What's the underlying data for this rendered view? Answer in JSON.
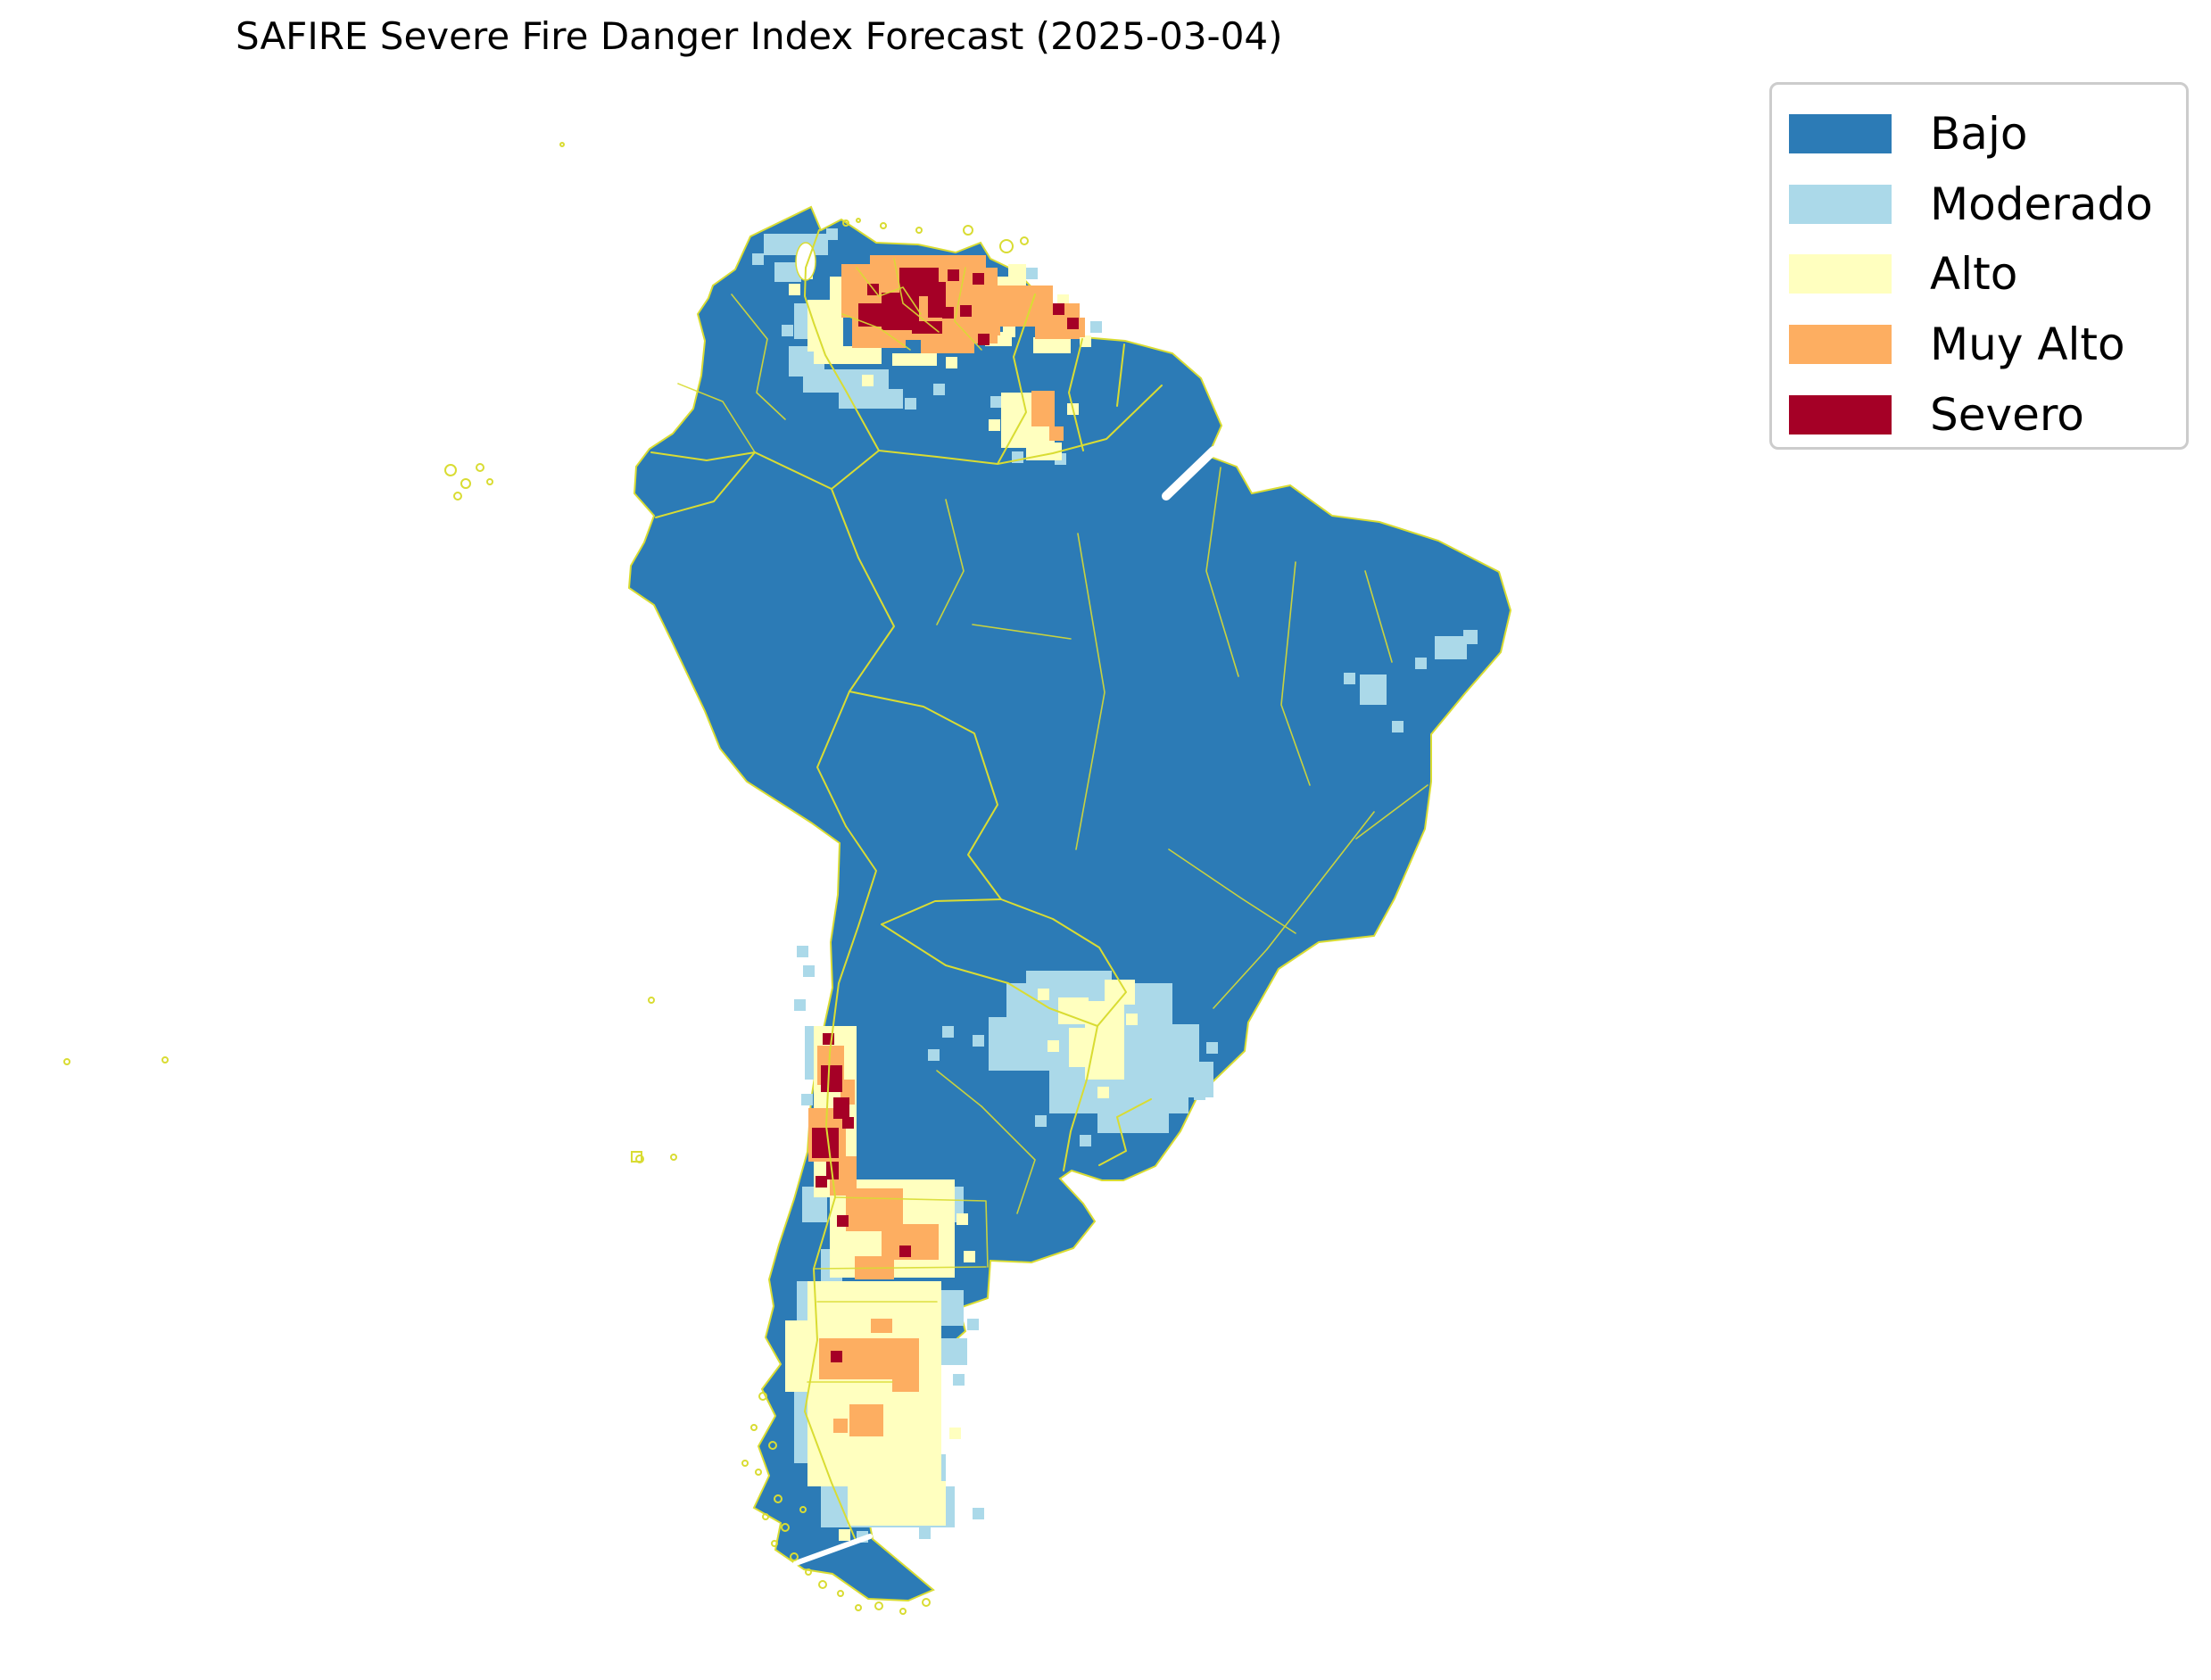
{
  "title": "SAFIRE Severe Fire Danger Index Forecast (2025-03-04)",
  "legend": {
    "items": [
      {
        "label": "Bajo",
        "color": "#2c7bb6"
      },
      {
        "label": "Moderado",
        "color": "#abd9e9"
      },
      {
        "label": "Alto",
        "color": "#ffffbf"
      },
      {
        "label": "Muy Alto",
        "color": "#fdae61"
      },
      {
        "label": "Severo",
        "color": "#a50026"
      }
    ]
  },
  "map": {
    "ocean_color": "#ffffff",
    "land_level": "Bajo",
    "admin_line_color": "#d9dc33",
    "cell_size": 13,
    "hotspots": [
      {
        "name": "venezuela-llanos",
        "level": "Moderado",
        "rects": [
          [
            884,
            388,
            40,
            34
          ],
          [
            900,
            414,
            96,
            26
          ],
          [
            940,
            436,
            72,
            22
          ],
          [
            868,
            294,
            30,
            22
          ],
          [
            856,
            262,
            72,
            24
          ],
          [
            890,
            340,
            16,
            40
          ]
        ],
        "cells": [
          [
            843,
            284
          ],
          [
            926,
            256
          ],
          [
            1014,
            446
          ],
          [
            1046,
            430
          ],
          [
            876,
            364
          ],
          [
            1222,
            360
          ],
          [
            1150,
            300
          ]
        ]
      },
      {
        "name": "venezuela-llanos",
        "level": "Alto",
        "rects": [
          [
            905,
            336,
            40,
            58
          ],
          [
            912,
            388,
            76,
            20
          ],
          [
            930,
            310,
            16,
            28
          ],
          [
            1000,
            396,
            50,
            14
          ],
          [
            1118,
            310,
            18,
            46
          ],
          [
            1104,
            372,
            30,
            16
          ],
          [
            1124,
            352,
            14,
            26
          ],
          [
            1158,
            378,
            42,
            18
          ],
          [
            1130,
            296,
            20,
            30
          ]
        ],
        "cells": [
          [
            884,
            318
          ],
          [
            898,
            300
          ],
          [
            966,
            420
          ],
          [
            1060,
            400
          ],
          [
            1134,
            296
          ],
          [
            1146,
            330
          ],
          [
            1185,
            330
          ],
          [
            1210,
            376
          ]
        ]
      },
      {
        "name": "venezuela-llanos",
        "level": "Muy Alto",
        "rects": [
          [
            943,
            296,
            90,
            60
          ],
          [
            975,
            286,
            130,
            95
          ],
          [
            1060,
            300,
            58,
            85
          ],
          [
            955,
            350,
            60,
            40
          ],
          [
            1095,
            320,
            26,
            56
          ],
          [
            1032,
            378,
            60,
            18
          ],
          [
            1120,
            320,
            60,
            46
          ],
          [
            1160,
            340,
            50,
            40
          ],
          [
            1198,
            356,
            18,
            22
          ]
        ],
        "cells": []
      },
      {
        "name": "venezuela-llanos",
        "level": "Severo",
        "rects": [
          [
            1008,
            300,
            44,
            32
          ],
          [
            988,
            328,
            42,
            42
          ],
          [
            962,
            340,
            30,
            26
          ],
          [
            1040,
            316,
            20,
            40
          ],
          [
            1022,
            360,
            34,
            14
          ]
        ],
        "cells": [
          [
            1056,
            344
          ],
          [
            1076,
            342
          ],
          [
            1090,
            306
          ],
          [
            1096,
            374
          ],
          [
            1062,
            302
          ],
          [
            972,
            318
          ],
          [
            1180,
            340
          ],
          [
            1196,
            356
          ]
        ]
      },
      {
        "name": "guyana-roraima",
        "level": "Moderado",
        "rects": [],
        "cells": [
          [
            1134,
            506
          ],
          [
            1182,
            508
          ],
          [
            1110,
            444
          ]
        ]
      },
      {
        "name": "guyana-roraima",
        "level": "Alto",
        "rects": [
          [
            1122,
            440,
            60,
            62
          ],
          [
            1150,
            496,
            40,
            20
          ]
        ],
        "cells": [
          [
            1108,
            470
          ],
          [
            1196,
            452
          ]
        ]
      },
      {
        "name": "guyana-roraima",
        "level": "Muy Alto",
        "rects": [
          [
            1156,
            438,
            26,
            40
          ],
          [
            1176,
            478,
            16,
            16
          ]
        ],
        "cells": []
      },
      {
        "name": "ne-brazil",
        "level": "Moderado",
        "rects": [
          [
            1608,
            713,
            36,
            26
          ],
          [
            1640,
            706,
            16,
            16
          ],
          [
            1524,
            756,
            30,
            34
          ]
        ],
        "cells": [
          [
            1586,
            737
          ],
          [
            1506,
            754
          ],
          [
            1560,
            808
          ]
        ]
      },
      {
        "name": "parana-basin",
        "level": "Moderado",
        "rects": [
          [
            1128,
            1102,
            186,
            98
          ],
          [
            1176,
            1192,
            156,
            56
          ],
          [
            1268,
            1148,
            76,
            62
          ],
          [
            1150,
            1088,
            96,
            36
          ],
          [
            1300,
            1190,
            60,
            40
          ],
          [
            1108,
            1140,
            40,
            60
          ],
          [
            1230,
            1240,
            80,
            30
          ]
        ],
        "cells": [
          [
            1090,
            1160
          ],
          [
            1352,
            1168
          ],
          [
            1338,
            1220
          ],
          [
            1210,
            1272
          ],
          [
            1160,
            1250
          ],
          [
            1056,
            1150
          ],
          [
            1040,
            1176
          ]
        ]
      },
      {
        "name": "parana-basin",
        "level": "Alto",
        "rects": [
          [
            1216,
            1122,
            44,
            88
          ],
          [
            1198,
            1152,
            48,
            44
          ],
          [
            1238,
            1098,
            34,
            28
          ],
          [
            1186,
            1118,
            34,
            30
          ]
        ],
        "cells": [
          [
            1163,
            1108
          ],
          [
            1262,
            1136
          ],
          [
            1230,
            1218
          ],
          [
            1174,
            1166
          ]
        ]
      },
      {
        "name": "central-chile",
        "level": "Moderado",
        "rects": [
          [
            902,
            1150,
            12,
            60
          ],
          [
            899,
            1330,
            28,
            40
          ]
        ],
        "cells": [
          [
            893,
            1060
          ],
          [
            900,
            1082
          ],
          [
            890,
            1120
          ],
          [
            898,
            1226
          ]
        ]
      },
      {
        "name": "central-chile",
        "level": "Alto",
        "rects": [
          [
            912,
            1150,
            48,
            192
          ]
        ],
        "cells": []
      },
      {
        "name": "central-chile",
        "level": "Muy Alto",
        "rects": [
          [
            916,
            1172,
            30,
            44
          ],
          [
            906,
            1242,
            42,
            60
          ],
          [
            930,
            1296,
            30,
            44
          ],
          [
            942,
            1210,
            16,
            28
          ]
        ],
        "cells": []
      },
      {
        "name": "central-chile",
        "level": "Severo",
        "rects": [
          [
            920,
            1194,
            24,
            30
          ],
          [
            910,
            1264,
            30,
            34
          ],
          [
            934,
            1230,
            18,
            24
          ],
          [
            926,
            1302,
            14,
            20
          ]
        ],
        "cells": [
          [
            922,
            1158
          ],
          [
            944,
            1252
          ],
          [
            914,
            1318
          ]
        ]
      },
      {
        "name": "cuyo-neuquen",
        "level": "Moderado",
        "rects": [
          [
            1040,
            1330,
            40,
            40
          ],
          [
            920,
            1400,
            24,
            40
          ]
        ],
        "cells": []
      },
      {
        "name": "cuyo-neuquen",
        "level": "Alto",
        "rects": [
          [
            930,
            1322,
            140,
            110
          ]
        ],
        "cells": [
          [
            1072,
            1360
          ],
          [
            1080,
            1402
          ]
        ]
      },
      {
        "name": "cuyo-neuquen",
        "level": "Muy Alto",
        "rects": [
          [
            948,
            1332,
            64,
            48
          ],
          [
            988,
            1372,
            64,
            40
          ],
          [
            958,
            1408,
            44,
            26
          ]
        ],
        "cells": []
      },
      {
        "name": "cuyo-neuquen",
        "level": "Severo",
        "rects": [],
        "cells": [
          [
            938,
            1362
          ],
          [
            1008,
            1396
          ]
        ]
      },
      {
        "name": "patagonia",
        "level": "Moderado",
        "rects": [
          [
            893,
            1436,
            16,
            120
          ],
          [
            1030,
            1446,
            50,
            40
          ],
          [
            1044,
            1500,
            40,
            30
          ],
          [
            920,
            1666,
            150,
            46
          ],
          [
            1000,
            1630,
            60,
            30
          ],
          [
            890,
            1560,
            16,
            80
          ]
        ],
        "cells": [
          [
            1084,
            1478
          ],
          [
            1068,
            1540
          ],
          [
            1090,
            1690
          ],
          [
            960,
            1716
          ],
          [
            1030,
            1712
          ]
        ]
      },
      {
        "name": "patagonia",
        "level": "Alto",
        "rects": [
          [
            905,
            1436,
            150,
            230
          ],
          [
            950,
            1660,
            110,
            50
          ],
          [
            880,
            1480,
            30,
            80
          ]
        ],
        "cells": [
          [
            1064,
            1600
          ],
          [
            1010,
            1690
          ],
          [
            940,
            1714
          ]
        ]
      },
      {
        "name": "patagonia",
        "level": "Muy Alto",
        "rects": [
          [
            918,
            1500,
            112,
            46
          ],
          [
            952,
            1574,
            38,
            36
          ],
          [
            976,
            1478,
            24,
            16
          ],
          [
            934,
            1590,
            16,
            16
          ],
          [
            1000,
            1540,
            30,
            20
          ]
        ],
        "cells": []
      },
      {
        "name": "patagonia",
        "level": "Severo",
        "rects": [],
        "cells": [
          [
            931,
            1514
          ]
        ]
      }
    ]
  }
}
